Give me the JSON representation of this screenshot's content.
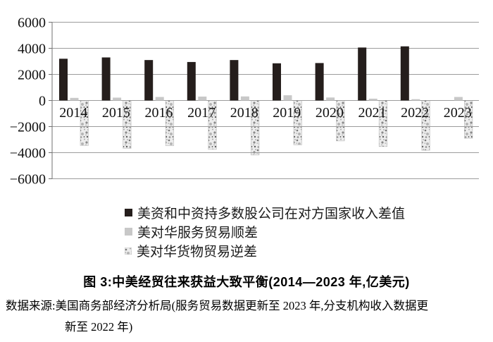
{
  "figure": {
    "title": "图 3:中美经贸往来获益大致平衡(2014—2023 年,亿美元)",
    "source_line1": "数据来源:美国商务部经济分析局(服务贸易数据更新至 2023 年,分支机构收入数据更",
    "source_line2": "新至 2022 年)"
  },
  "chart_data": {
    "type": "bar",
    "title": "图 3:中美经贸往来获益大致平衡(2014—2023 年,亿美元)",
    "unit": "亿美元",
    "categories": [
      "2014",
      "2015",
      "2016",
      "2017",
      "2018",
      "2019",
      "2020",
      "2021",
      "2022",
      "2023"
    ],
    "series": [
      {
        "name": "美资和中资持多数股公司在对方国家收入差值",
        "style": "solid-black",
        "color": "#251e1c",
        "values": [
          3200,
          3300,
          3100,
          2950,
          3100,
          2850,
          2870,
          4060,
          4150,
          null
        ]
      },
      {
        "name": "美对华服务贸易顺差",
        "style": "solid-gray",
        "color": "#c8c8c8",
        "values": [
          200,
          220,
          270,
          300,
          310,
          400,
          230,
          140,
          100,
          270
        ]
      },
      {
        "name": "美对华货物贸易逆差",
        "style": "speckled",
        "color": "#ececec",
        "values": [
          -3450,
          -3670,
          -3470,
          -3750,
          -4180,
          -3400,
          -3100,
          -3530,
          -3820,
          -2900
        ]
      }
    ],
    "ylim": [
      -6000,
      6000
    ],
    "yticks": [
      6000,
      4000,
      2000,
      0,
      -2000,
      -4000,
      -6000
    ],
    "ytick_labels": [
      "6000",
      "4000",
      "2000",
      "0",
      "−2000",
      "−4000",
      "−6000"
    ],
    "grid": true,
    "legend_position": "bottom-left"
  }
}
